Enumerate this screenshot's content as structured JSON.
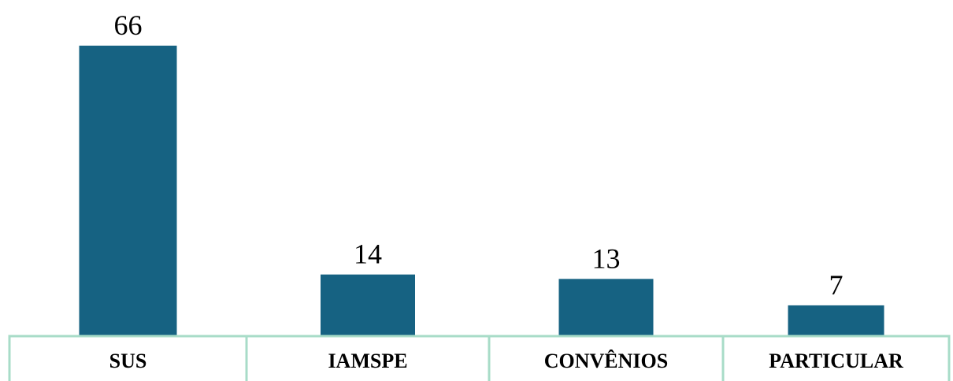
{
  "chart_data": {
    "type": "bar",
    "categories": [
      "SUS",
      "IAMSPE",
      "CONVÊNIOS",
      "PARTICULAR"
    ],
    "values": [
      66,
      14,
      13,
      7
    ],
    "title": "",
    "xlabel": "",
    "ylabel": "",
    "ylim": [
      0,
      66
    ],
    "grid": false,
    "legend": "none",
    "data_labels": true,
    "colors": {
      "bar": "#166282",
      "table_border": "#a8dcc8"
    }
  }
}
